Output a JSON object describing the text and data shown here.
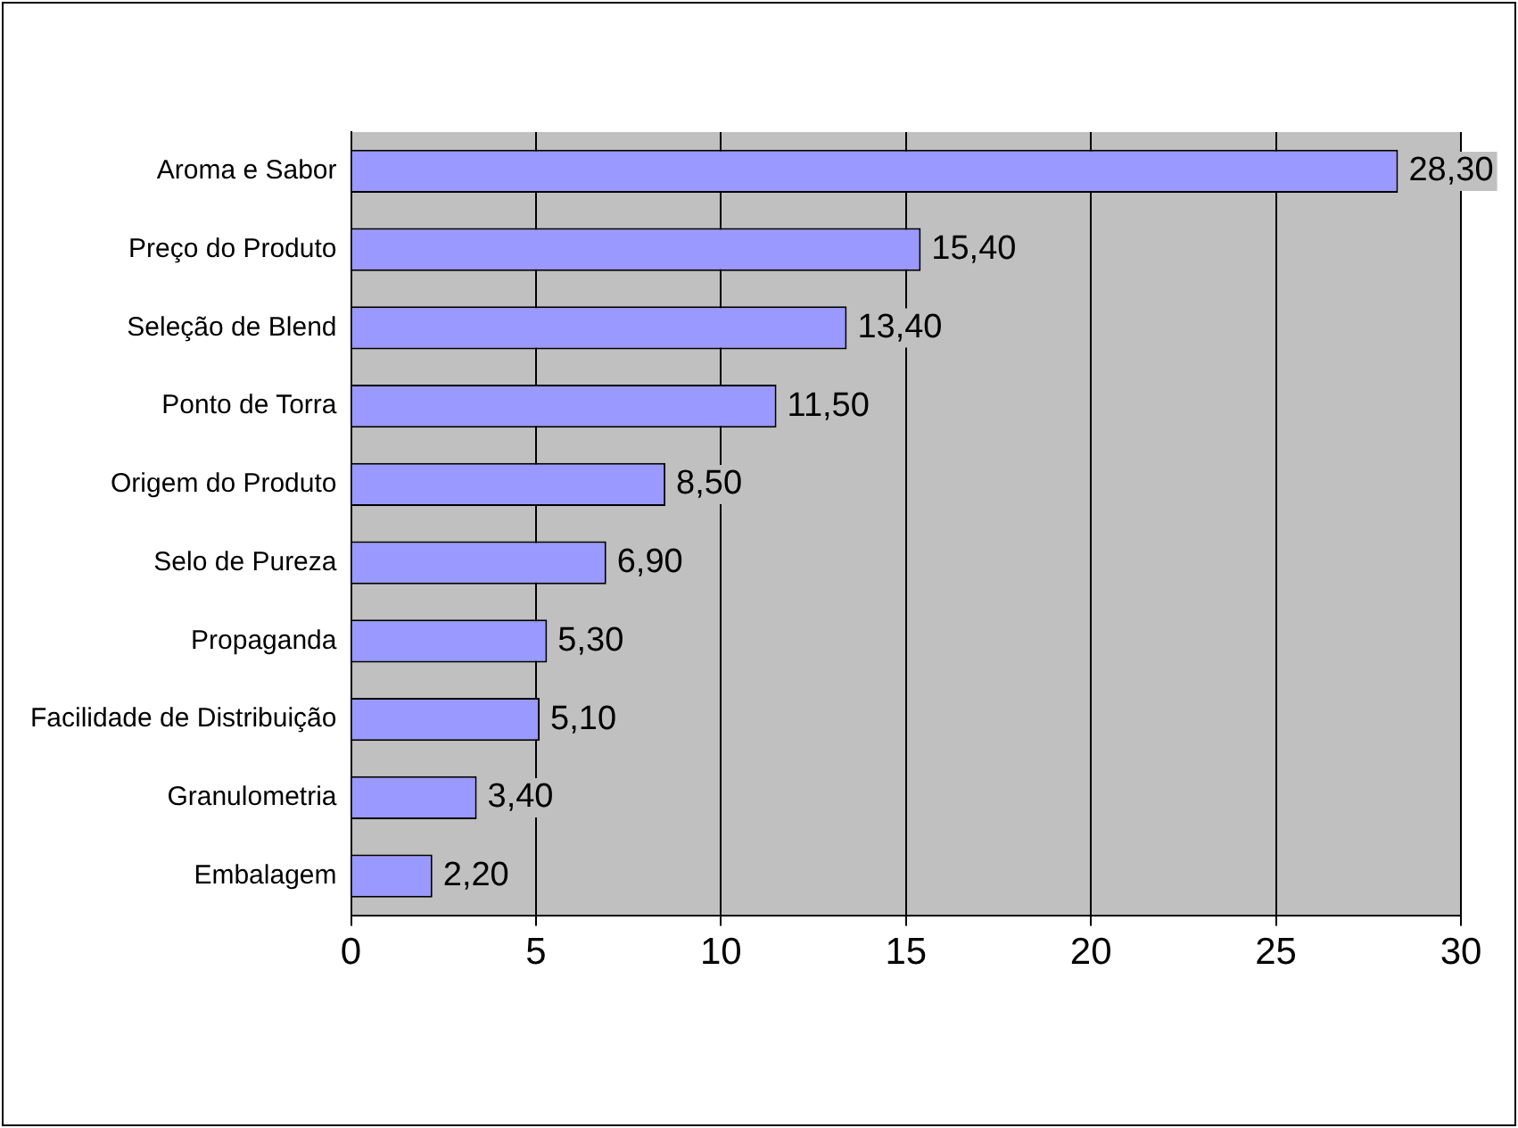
{
  "chart_data": {
    "type": "bar",
    "orientation": "horizontal",
    "categories": [
      "Aroma e Sabor",
      "Preço do Produto",
      "Seleção de Blend",
      "Ponto de Torra",
      "Origem do Produto",
      "Selo de Pureza",
      "Propaganda",
      "Facilidade de Distribuição",
      "Granulometria",
      "Embalagem"
    ],
    "values": [
      28.3,
      15.4,
      13.4,
      11.5,
      8.5,
      6.9,
      5.3,
      5.1,
      3.4,
      2.2
    ],
    "value_labels": [
      "28,30",
      "15,40",
      "13,40",
      "11,50",
      "8,50",
      "6,90",
      "5,30",
      "5,10",
      "3,40",
      "2,20"
    ],
    "color": "#9999ff",
    "xlim": [
      0,
      30
    ],
    "xticks": [
      0,
      5,
      10,
      15,
      20,
      25,
      30
    ],
    "grid": "x"
  }
}
